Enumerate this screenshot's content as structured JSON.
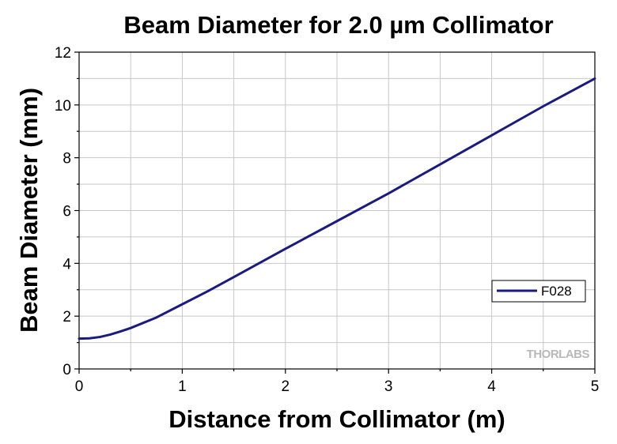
{
  "chart_data": {
    "type": "line",
    "title": "Beam Diameter for 2.0 µm Collimator",
    "xlabel": "Distance from Collimator (m)",
    "ylabel": "Beam Diameter (mm)",
    "xlim": [
      0,
      5
    ],
    "ylim": [
      0,
      12
    ],
    "xticks": [
      0,
      1,
      2,
      3,
      4,
      5
    ],
    "yticks": [
      0,
      2,
      4,
      6,
      8,
      10,
      12
    ],
    "grid": true,
    "legend_position": "lower-right",
    "series": [
      {
        "name": "F028",
        "color": "#1a1a80",
        "x": [
          0,
          0.1,
          0.2,
          0.3,
          0.4,
          0.5,
          0.75,
          1.0,
          1.25,
          1.5,
          2.0,
          2.5,
          3.0,
          3.5,
          4.0,
          4.5,
          5.0
        ],
        "y": [
          1.15,
          1.16,
          1.21,
          1.3,
          1.42,
          1.55,
          1.95,
          2.45,
          2.95,
          3.48,
          4.55,
          5.6,
          6.65,
          7.75,
          8.85,
          9.95,
          11.0
        ]
      }
    ]
  },
  "watermark": "THORLABS"
}
